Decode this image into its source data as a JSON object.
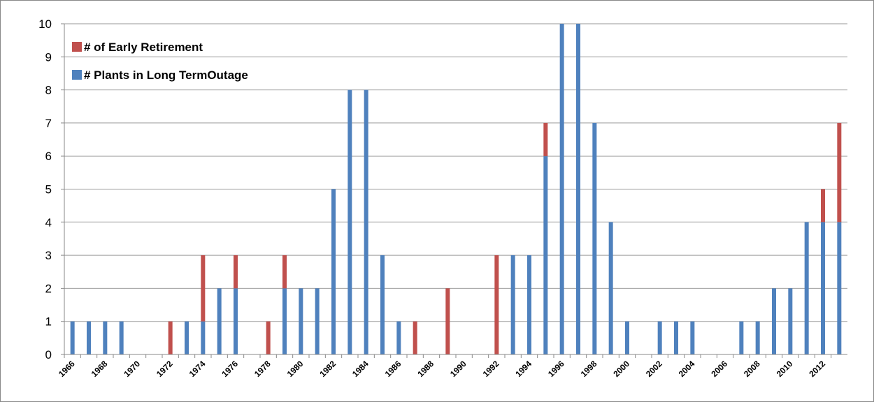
{
  "chart_data": {
    "type": "stacked-bar",
    "categories": [
      "1966",
      null,
      "1968",
      null,
      "1970",
      null,
      "1972",
      null,
      "1974",
      null,
      "1976",
      null,
      "1978",
      null,
      "1980",
      null,
      "1982",
      null,
      "1984",
      null,
      "1986",
      null,
      "1988",
      null,
      "1990",
      null,
      "1992",
      null,
      "1994",
      null,
      "1996",
      null,
      "1998",
      null,
      "2000",
      null,
      "2002",
      null,
      "2004",
      null,
      "2006",
      null,
      "2008",
      null,
      "2010",
      null,
      "2012",
      null
    ],
    "series": [
      {
        "name": "# Plants in Long TermOutage",
        "color": "#4f81bd",
        "values": [
          1,
          1,
          1,
          1,
          0,
          0,
          0,
          1,
          1,
          2,
          2,
          0,
          0,
          2,
          2,
          2,
          5,
          8,
          8,
          3,
          1,
          0,
          0,
          0,
          0,
          0,
          0,
          3,
          3,
          6,
          10,
          10,
          7,
          4,
          1,
          0,
          1,
          1,
          1,
          0,
          0,
          1,
          1,
          2,
          2,
          4,
          4,
          4
        ]
      },
      {
        "name": "# of Early Retirement",
        "color": "#c0504d",
        "values": [
          0,
          0,
          0,
          0,
          0,
          0,
          1,
          0,
          2,
          0,
          1,
          0,
          1,
          1,
          0,
          0,
          0,
          0,
          0,
          0,
          0,
          1,
          0,
          2,
          0,
          0,
          3,
          0,
          0,
          1,
          0,
          0,
          0,
          0,
          0,
          0,
          0,
          0,
          0,
          0,
          0,
          0,
          0,
          0,
          0,
          0,
          1,
          3
        ]
      }
    ],
    "ylim": [
      0,
      10
    ],
    "yticks": [
      0,
      1,
      2,
      3,
      4,
      5,
      6,
      7,
      8,
      9,
      10
    ],
    "grid": true,
    "legend": "top-left"
  }
}
